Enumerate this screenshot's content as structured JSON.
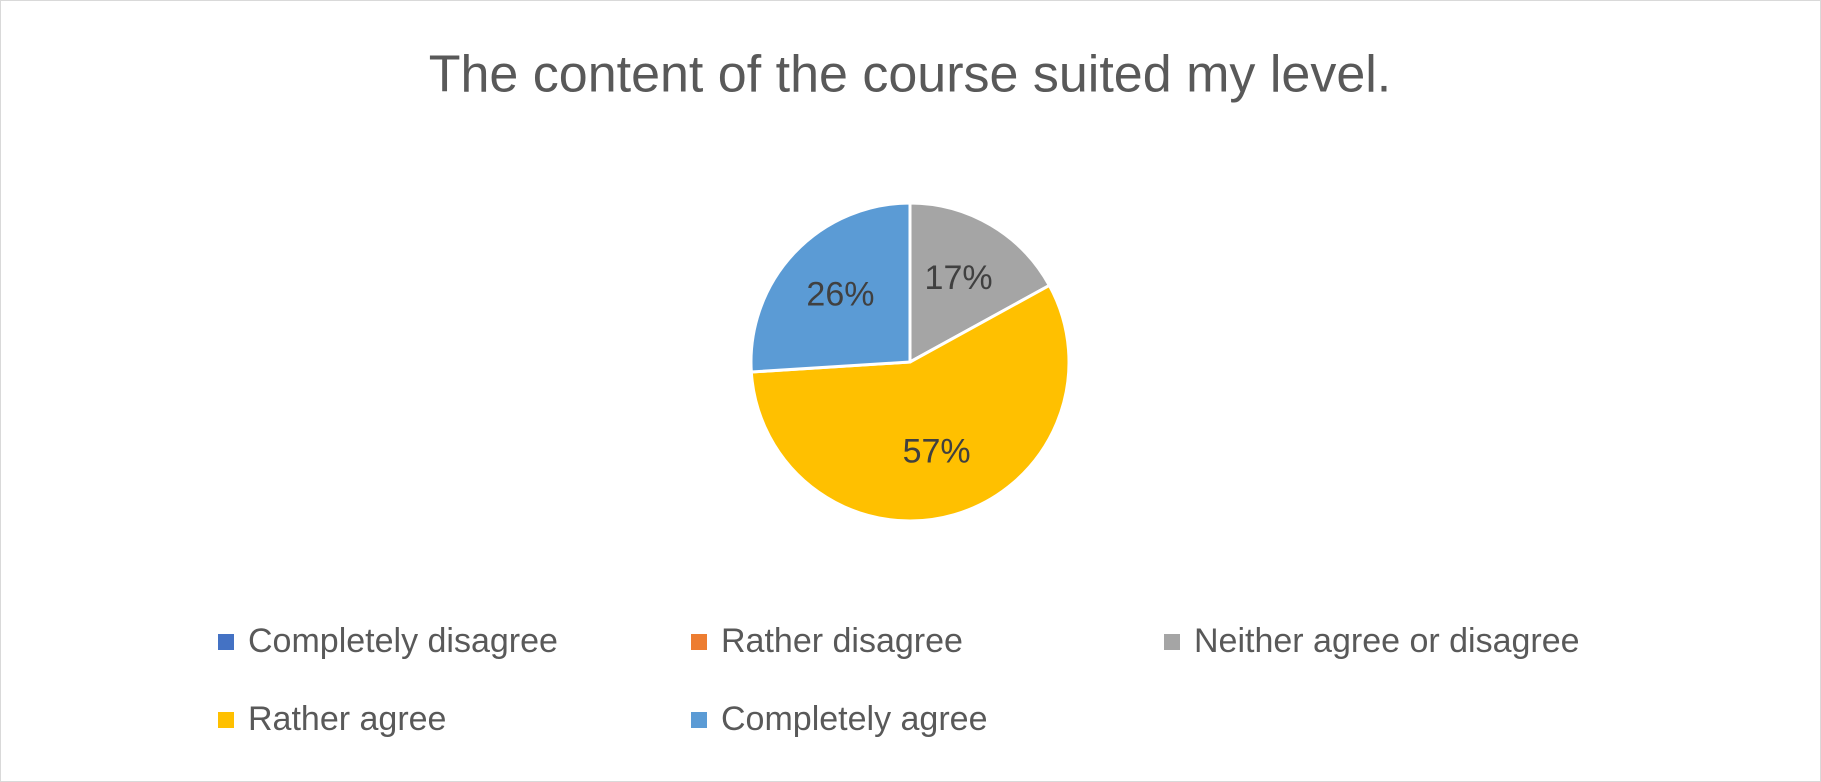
{
  "chart_data": {
    "type": "pie",
    "title": "The content of the course suited my level.",
    "categories": [
      "Completely disagree",
      "Rather disagree",
      "Neither agree or disagree",
      "Rather agree",
      "Completely agree"
    ],
    "values": [
      0,
      0,
      17,
      57,
      26
    ],
    "value_labels": [
      null,
      null,
      "17%",
      "57%",
      "26%"
    ],
    "colors": [
      "#4472c4",
      "#ed7d31",
      "#a5a5a5",
      "#ffc000",
      "#5b9bd5"
    ],
    "legend": "bottom"
  }
}
